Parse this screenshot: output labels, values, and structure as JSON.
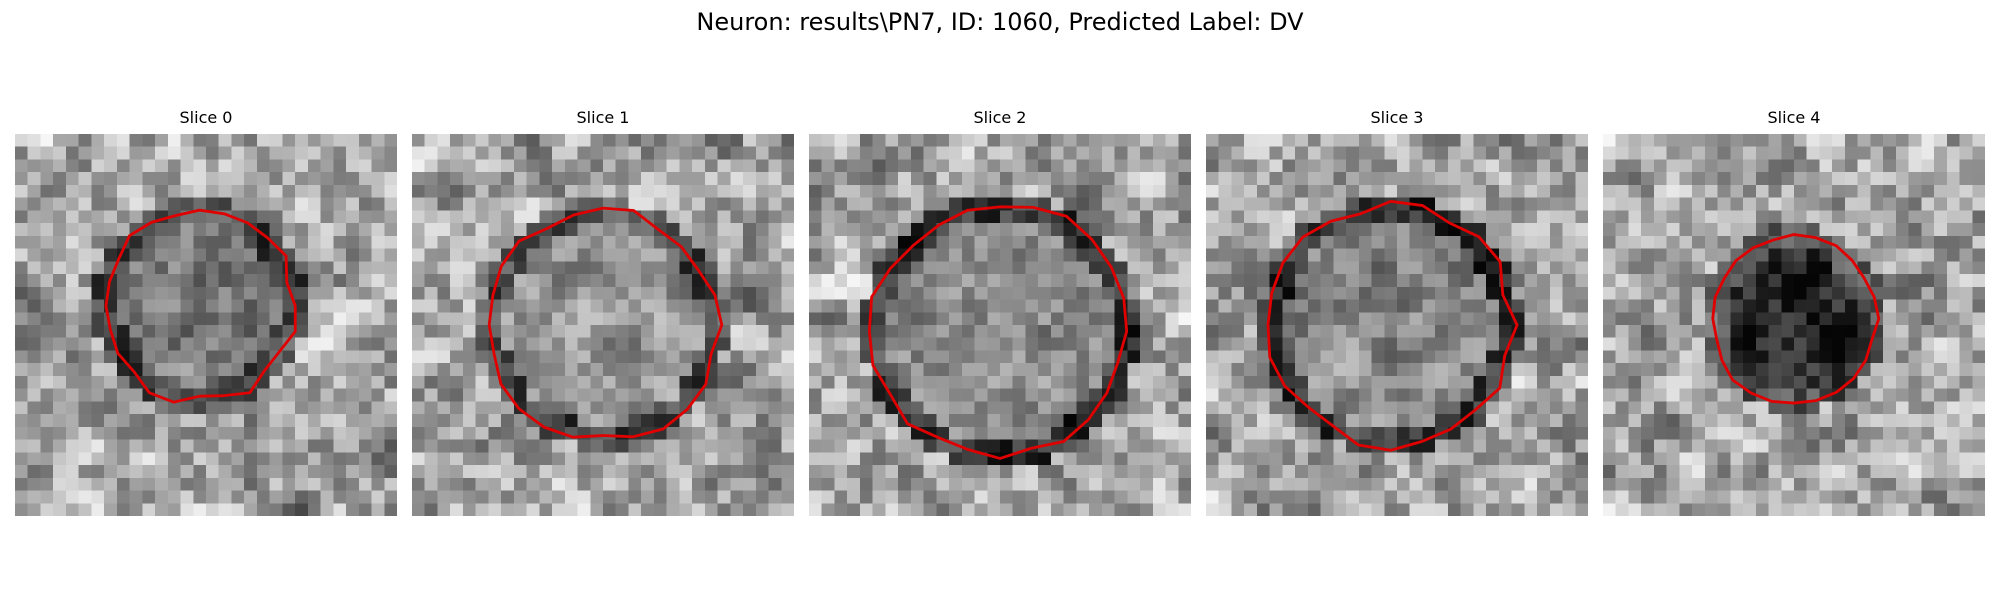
{
  "figure": {
    "suptitle": "Neuron: results\\PN7, ID: 1060, Predicted Label: DV"
  },
  "panels": [
    {
      "title": "Slice 0"
    },
    {
      "title": "Slice 1"
    },
    {
      "title": "Slice 2"
    },
    {
      "title": "Slice 3"
    },
    {
      "title": "Slice 4"
    }
  ],
  "colors": {
    "contour": "#e00000",
    "background": "#ffffff"
  }
}
